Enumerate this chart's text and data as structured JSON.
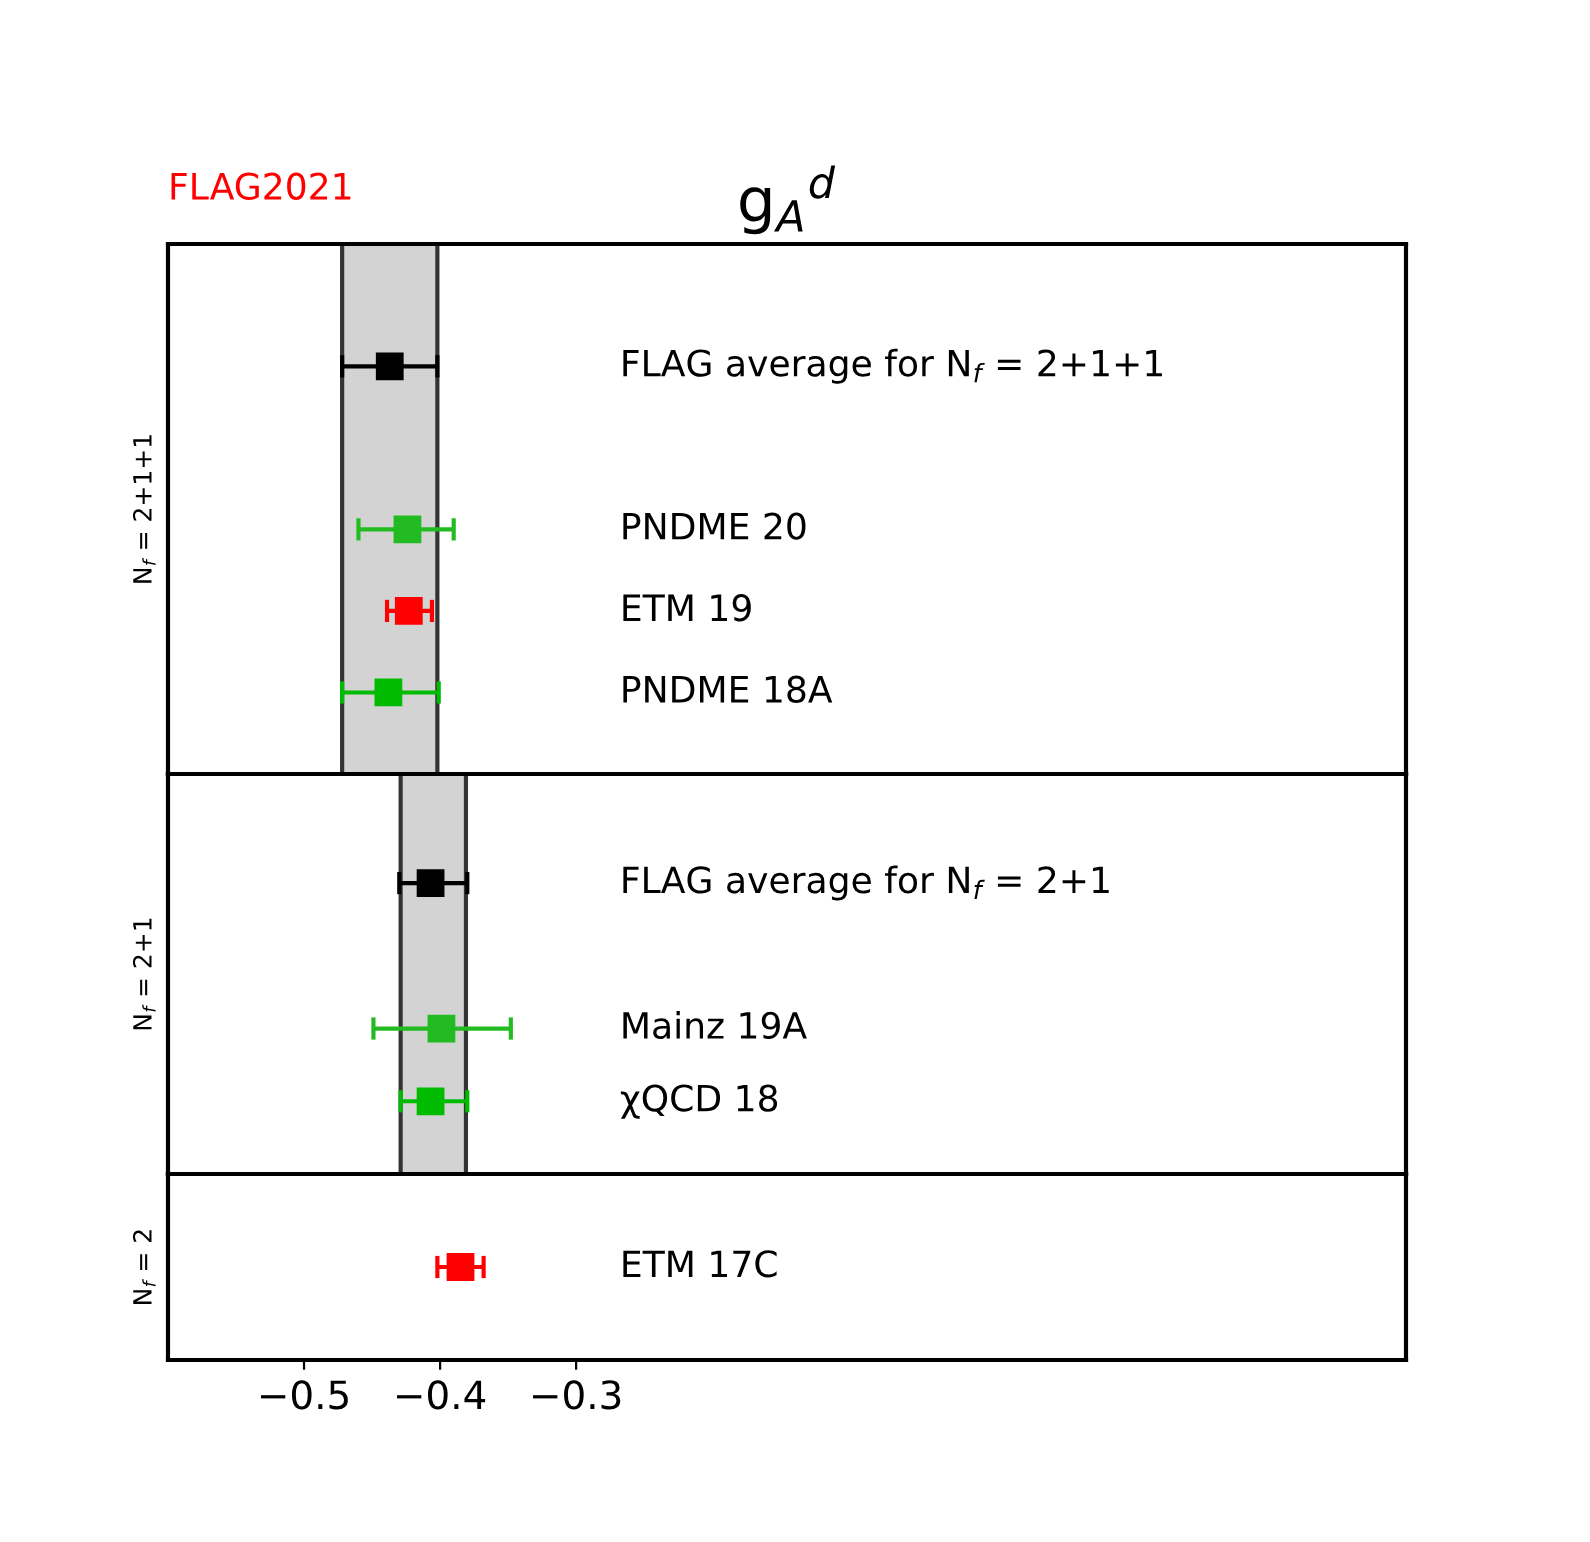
{
  "chart_data": [
    {
      "type": "scatter",
      "orientation": "horizontal",
      "title": "g$_{A}$$^{d}$",
      "annotations": [
        "FLAG2021"
      ],
      "ylabel": "N$_{f}$ = 2+1+1",
      "categories": [
        "FLAG average for N$_{f}$ = 2+1+1",
        null,
        "PNDME 20",
        "ETM 19",
        "PNDME 18A"
      ],
      "values": [
        -0.437,
        null,
        -0.424,
        -0.423,
        -0.438
      ],
      "errors": [
        [
          -0.472,
          -0.402
        ],
        null,
        [
          -0.46,
          -0.39
        ],
        [
          -0.439,
          -0.406
        ],
        [
          -0.472,
          -0.401
        ]
      ],
      "colors": [
        "#000000",
        null,
        "#22bb22",
        "#ff0000",
        "#00bb00"
      ],
      "marker": "square",
      "xlim": [
        -0.6,
        0.31
      ],
      "bands": [
        {
          "axis": "x",
          "from": -0.472,
          "to": -0.402,
          "color": "#d3d3d3"
        }
      ],
      "tick_labels": "y"
    },
    {
      "type": "scatter",
      "orientation": "horizontal",
      "ylabel": "N$_{f}$ = 2+1",
      "categories": [
        "FLAG average for N$_{f}$ = 2+1",
        null,
        "Mainz 19A",
        "χQCD 18"
      ],
      "values": [
        -0.407,
        null,
        -0.399,
        -0.407
      ],
      "errors": [
        [
          -0.43,
          -0.38
        ],
        null,
        [
          -0.449,
          -0.348
        ],
        [
          -0.429,
          -0.38
        ]
      ],
      "colors": [
        "#000000",
        null,
        "#22bb22",
        "#00bb00"
      ],
      "marker": "square",
      "xlim": [
        -0.6,
        0.31
      ],
      "bands": [
        {
          "axis": "x",
          "from": -0.429,
          "to": -0.381,
          "color": "#d3d3d3"
        }
      ],
      "tick_labels": "y"
    },
    {
      "type": "scatter",
      "orientation": "horizontal",
      "ylabel": "N$_{f}$ = 2",
      "categories": [
        "ETM 17C"
      ],
      "values": [
        -0.385
      ],
      "errors": [
        [
          -0.402,
          -0.368
        ]
      ],
      "colors": [
        "#ff0000"
      ],
      "marker": "square",
      "xlim": [
        -0.6,
        0.31
      ],
      "xticks": [
        {
          "value": -0.5,
          "label": "−0.5"
        },
        {
          "value": -0.4,
          "label": "−0.4"
        },
        {
          "value": -0.3,
          "label": "−0.3"
        }
      ]
    }
  ]
}
